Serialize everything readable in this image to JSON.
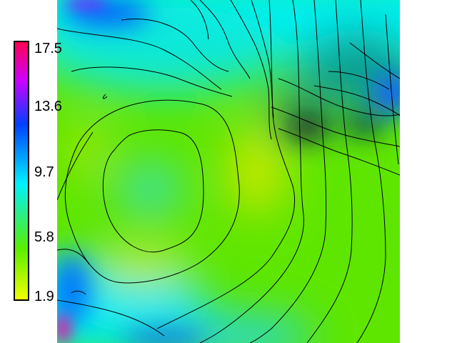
{
  "colorbar": {
    "ticks": [
      "17.5",
      "13.6",
      "9.7",
      "5.8",
      "1.9"
    ],
    "min": 1.9,
    "max": 17.5,
    "colors": [
      "#f0ff00",
      "#58ee00",
      "#00f0ff",
      "#0040ff",
      "#cc00ff",
      "#ff0050"
    ]
  },
  "map": {
    "type": "contour-heatmap"
  }
}
